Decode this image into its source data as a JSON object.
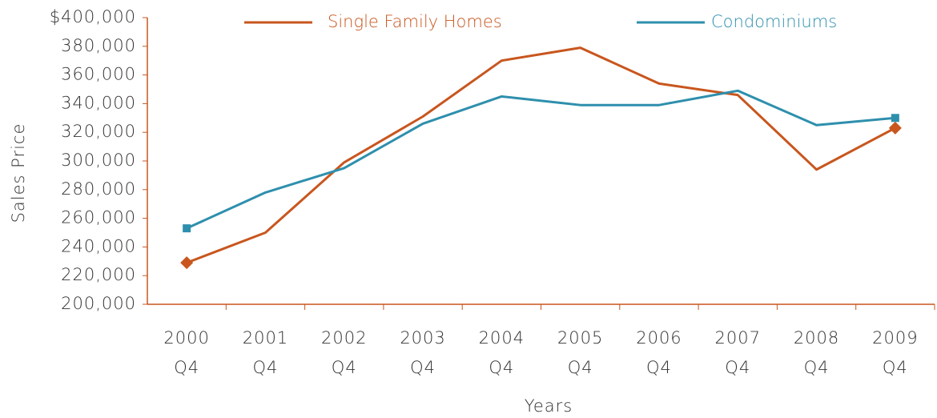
{
  "chart_data": {
    "type": "line",
    "x_label": "Years",
    "y_label": "Sales Price",
    "categories": [
      [
        "2000",
        "Q4"
      ],
      [
        "2001",
        "Q4"
      ],
      [
        "2002",
        "Q4"
      ],
      [
        "2003",
        "Q4"
      ],
      [
        "2004",
        "Q4"
      ],
      [
        "2005",
        "Q4"
      ],
      [
        "2006",
        "Q4"
      ],
      [
        "2007",
        "Q4"
      ],
      [
        "2008",
        "Q4"
      ],
      [
        "2009",
        "Q4"
      ]
    ],
    "series": [
      {
        "name": "Single Family Homes",
        "color": "#c8561e",
        "marker": "diamond",
        "values": [
          229000,
          250000,
          299000,
          331000,
          370000,
          379000,
          354000,
          346000,
          294000,
          323000
        ]
      },
      {
        "name": "Condominiums",
        "color": "#2e8fad",
        "marker": "square",
        "values": [
          253000,
          278000,
          295000,
          326000,
          345000,
          339000,
          339000,
          349000,
          325000,
          330000
        ]
      }
    ],
    "ylim": [
      200000,
      400000
    ],
    "yticks": [
      {
        "value": 200000,
        "label": "200,000"
      },
      {
        "value": 220000,
        "label": "220,000"
      },
      {
        "value": 240000,
        "label": "240,000"
      },
      {
        "value": 260000,
        "label": "260,000"
      },
      {
        "value": 280000,
        "label": "280,000"
      },
      {
        "value": 300000,
        "label": "300,000"
      },
      {
        "value": 320000,
        "label": "320,000"
      },
      {
        "value": 340000,
        "label": "340,000"
      },
      {
        "value": 360000,
        "label": "360,000"
      },
      {
        "value": 380000,
        "label": "380,000"
      },
      {
        "value": 400000,
        "label": "$400,000"
      }
    ],
    "axis_color": "#c8561e",
    "legend": "top"
  }
}
